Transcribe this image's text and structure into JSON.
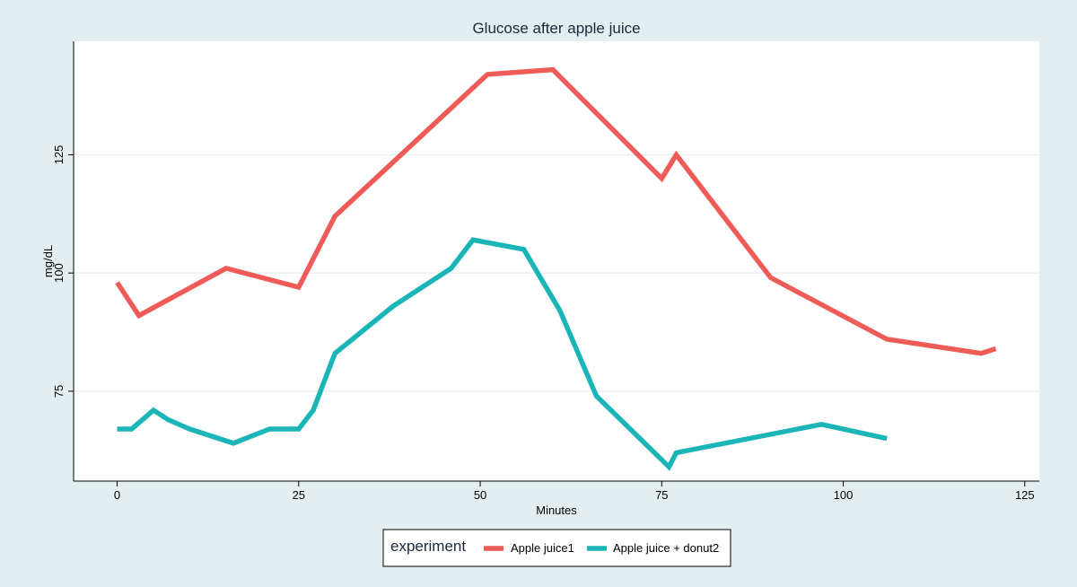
{
  "chart_data": {
    "type": "line",
    "title": "Glucose after apple juice",
    "xlabel": "Minutes",
    "ylabel": "mg/dL",
    "xlim": [
      -6,
      127
    ],
    "ylim": [
      56,
      149
    ],
    "x_ticks": [
      0,
      25,
      50,
      75,
      100,
      125
    ],
    "y_ticks": [
      75,
      100,
      125
    ],
    "grid": "horizontal",
    "legend": {
      "title": "experiment",
      "placement": "bottom-center"
    },
    "series": [
      {
        "name": "Apple juice1",
        "color": "#ef5b57",
        "points": [
          {
            "x": 0,
            "y": 98
          },
          {
            "x": 3,
            "y": 91
          },
          {
            "x": 15,
            "y": 101
          },
          {
            "x": 25,
            "y": 97
          },
          {
            "x": 30,
            "y": 112
          },
          {
            "x": 51,
            "y": 142
          },
          {
            "x": 60,
            "y": 143
          },
          {
            "x": 75,
            "y": 120
          },
          {
            "x": 77,
            "y": 125
          },
          {
            "x": 90,
            "y": 99
          },
          {
            "x": 106,
            "y": 86
          },
          {
            "x": 119,
            "y": 83
          },
          {
            "x": 121,
            "y": 84
          }
        ]
      },
      {
        "name": "Apple juice + donut2",
        "color": "#1bb5b8",
        "points": [
          {
            "x": 0,
            "y": 67
          },
          {
            "x": 2,
            "y": 67
          },
          {
            "x": 5,
            "y": 71
          },
          {
            "x": 7,
            "y": 69
          },
          {
            "x": 10,
            "y": 67
          },
          {
            "x": 16,
            "y": 64
          },
          {
            "x": 21,
            "y": 67
          },
          {
            "x": 25,
            "y": 67
          },
          {
            "x": 27,
            "y": 71
          },
          {
            "x": 30,
            "y": 83
          },
          {
            "x": 38,
            "y": 93
          },
          {
            "x": 46,
            "y": 101
          },
          {
            "x": 49,
            "y": 107
          },
          {
            "x": 56,
            "y": 105
          },
          {
            "x": 61,
            "y": 92
          },
          {
            "x": 66,
            "y": 74
          },
          {
            "x": 76,
            "y": 59
          },
          {
            "x": 77,
            "y": 62
          },
          {
            "x": 97,
            "y": 68
          },
          {
            "x": 106,
            "y": 65
          }
        ]
      }
    ]
  }
}
